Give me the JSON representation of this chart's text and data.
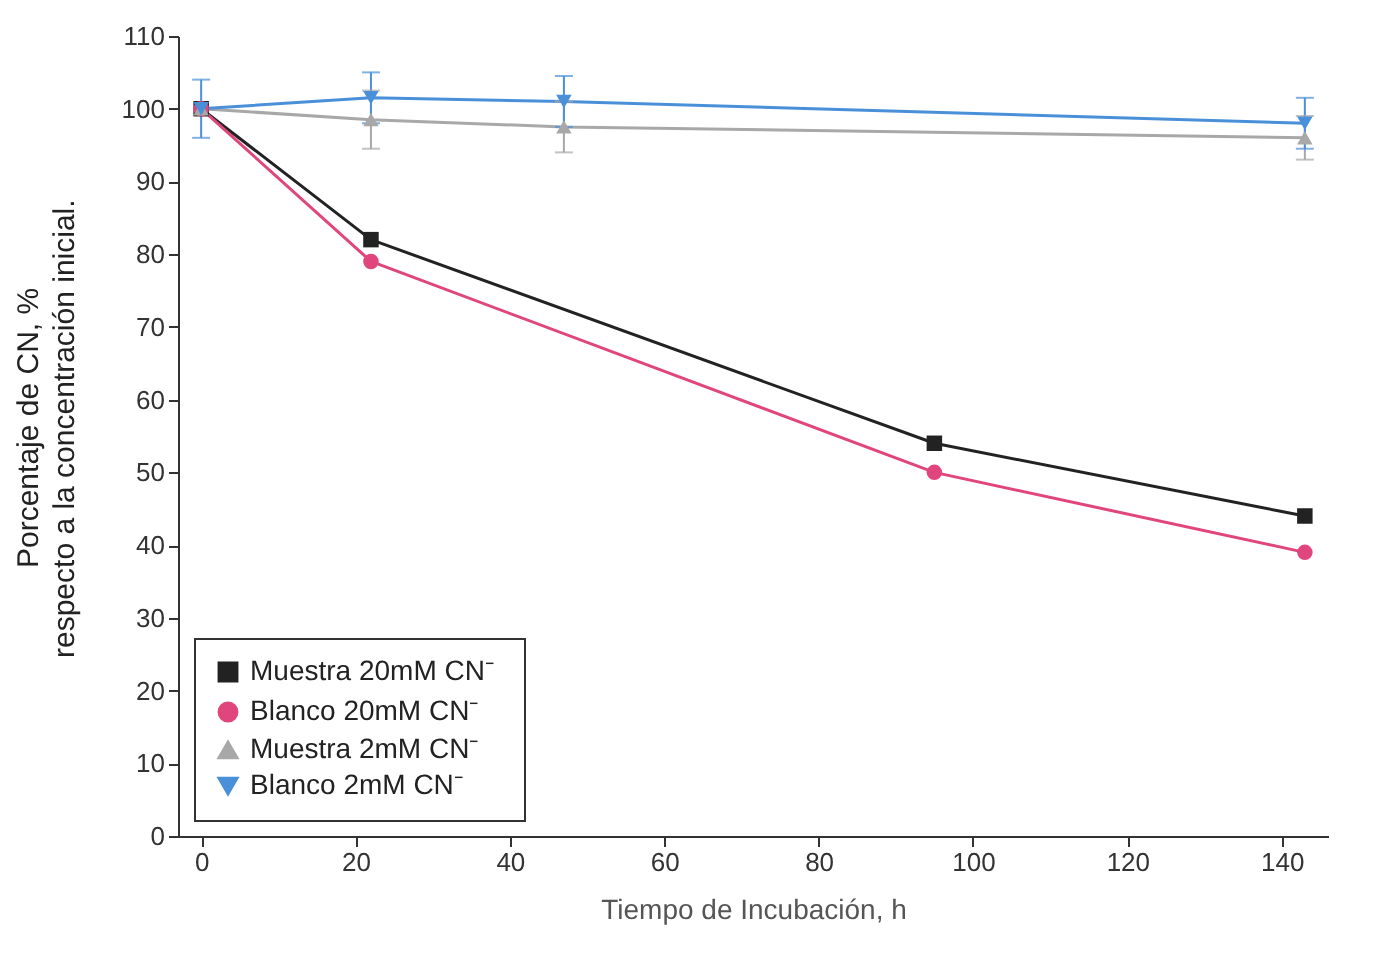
{
  "chart_data": {
    "type": "line",
    "xlabel": "Tiempo de Incubación, h",
    "ylabel": "Porcentaje de CN, %\nrespecto a la concentración inicial.",
    "series": [
      {
        "name": "Muestra  20mM CN⁻",
        "color": "#222222",
        "marker": "square",
        "values": [
          100,
          82,
          54,
          44
        ],
        "x": [
          0,
          22,
          95,
          143
        ]
      },
      {
        "name": "Blanco    20mM CN⁻",
        "color": "#e0457b",
        "marker": "circle",
        "values": [
          100,
          79,
          50,
          39
        ],
        "x": [
          0,
          22,
          95,
          143
        ]
      },
      {
        "name": "Muestra  2mM CN⁻",
        "color": "#a8a8a8",
        "marker": "triangle",
        "values": [
          100,
          98.5,
          97.5,
          96
        ],
        "x": [
          0,
          22,
          47,
          143
        ],
        "errors": [
          null,
          [
            94.5,
            102.5
          ],
          [
            94,
            101
          ],
          [
            93,
            99
          ]
        ]
      },
      {
        "name": "Blanco    2mM CN⁻",
        "color": "#4a90d9",
        "marker": "triangle-down",
        "values": [
          100,
          101.5,
          101,
          98
        ],
        "x": [
          0,
          22,
          47,
          143
        ],
        "errors": [
          [
            96,
            104
          ],
          [
            98,
            105
          ],
          [
            97.5,
            104.5
          ],
          [
            94.5,
            101.5
          ]
        ]
      }
    ],
    "xlim": [
      -3,
      146
    ],
    "ylim": [
      0,
      110
    ],
    "xticks": [
      0,
      20,
      40,
      60,
      80,
      100,
      120,
      140
    ],
    "yticks": [
      0,
      10,
      20,
      30,
      40,
      50,
      60,
      70,
      80,
      90,
      100,
      110
    ],
    "grid": false,
    "legend": "bottom left"
  }
}
